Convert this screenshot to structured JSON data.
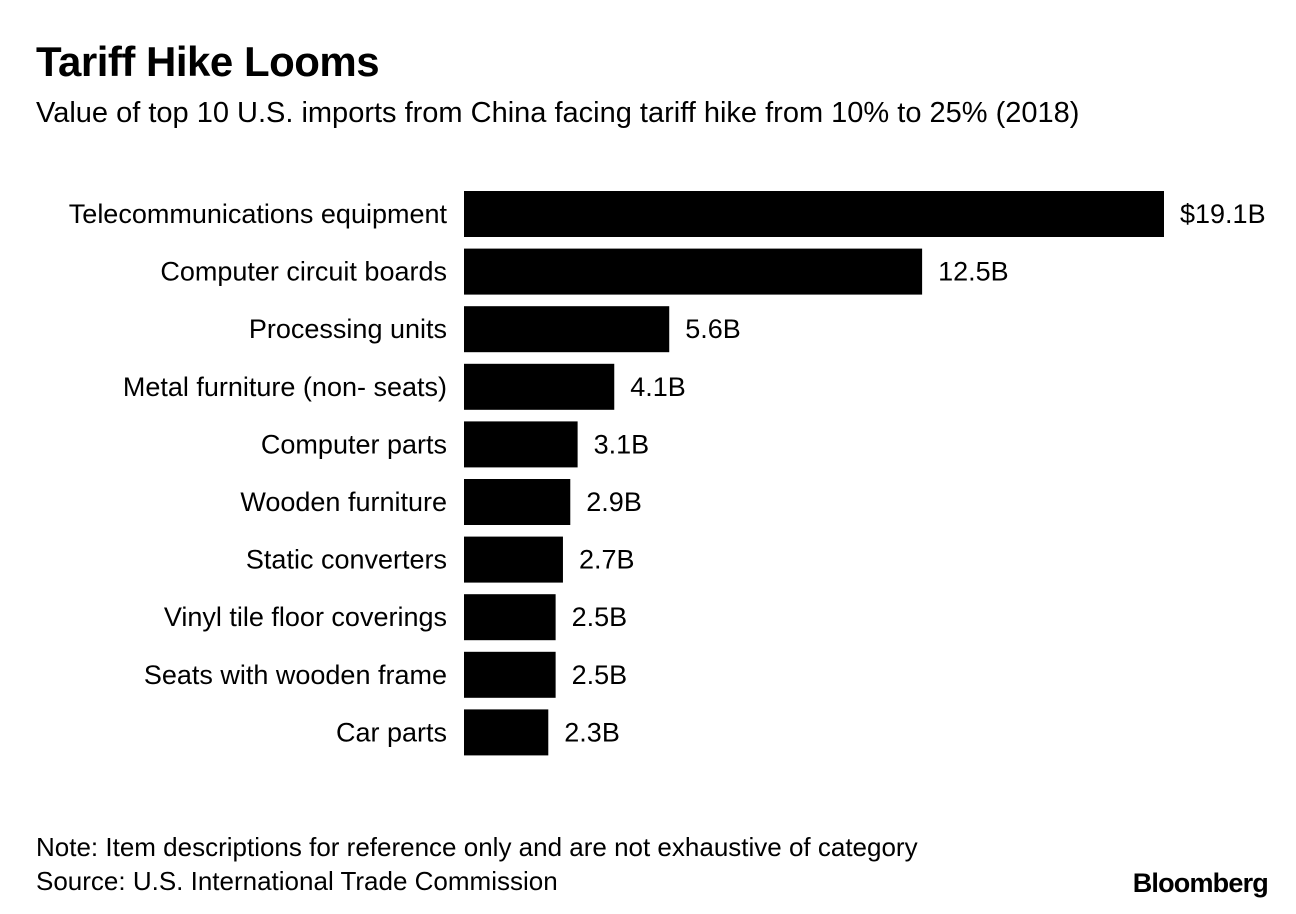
{
  "header": {
    "title": "Tariff Hike Looms",
    "subtitle": "Value of top 10 U.S. imports from China facing tariff hike from 10% to 25% (2018)"
  },
  "chart_data": {
    "type": "bar",
    "orientation": "horizontal",
    "title": "Tariff Hike Looms",
    "subtitle": "Value of top 10 U.S. imports from China facing tariff hike from 10% to 25% (2018)",
    "categories": [
      "Telecommunications equipment",
      "Computer circuit boards",
      "Processing units",
      "Metal furniture (non- seats)",
      "Computer parts",
      "Wooden furniture",
      "Static converters",
      "Vinyl tile floor coverings",
      "Seats with wooden frame",
      "Car parts"
    ],
    "values": [
      19.1,
      12.5,
      5.6,
      4.1,
      3.1,
      2.9,
      2.7,
      2.5,
      2.5,
      2.3
    ],
    "value_labels": [
      "$19.1B",
      "12.5B",
      "5.6B",
      "4.1B",
      "3.1B",
      "2.9B",
      "2.7B",
      "2.5B",
      "2.5B",
      "2.3B"
    ],
    "unit": "billion USD",
    "xlim": [
      0,
      19.1
    ],
    "grid": false,
    "legend": "none",
    "bar_color": "#000000"
  },
  "footer": {
    "note": "Note: Item descriptions for reference only and are not exhaustive of category",
    "source": "Source: U.S. International Trade Commission",
    "logo": "Bloomberg"
  }
}
